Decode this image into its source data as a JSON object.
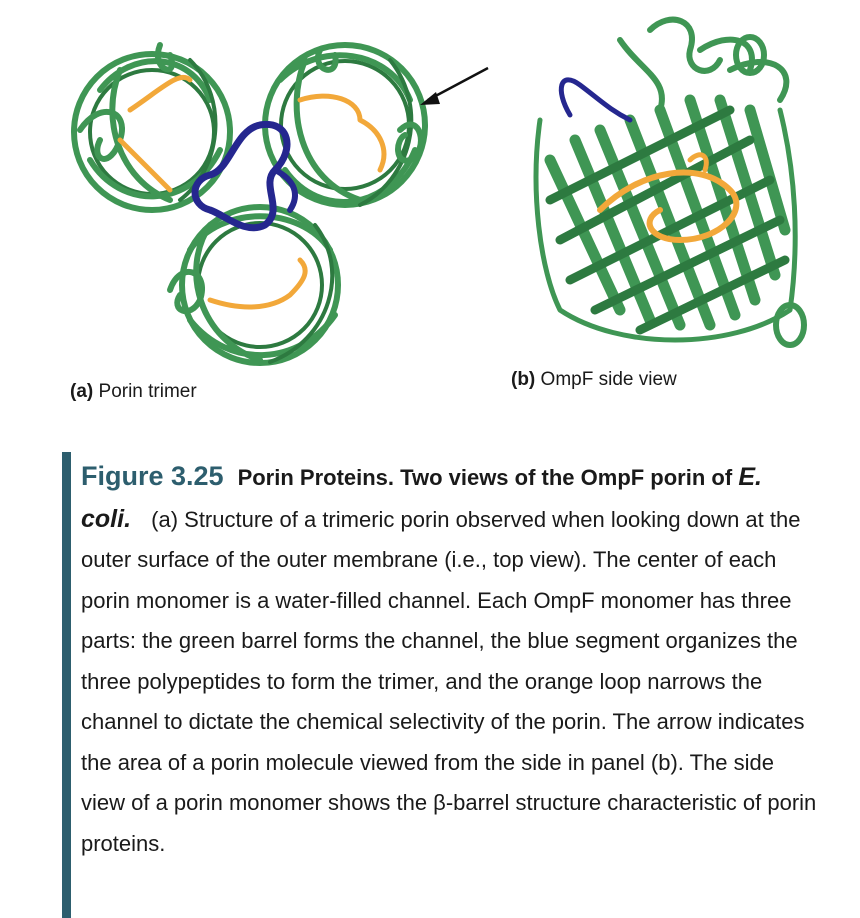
{
  "panels": {
    "a": {
      "tag": "(a)",
      "label": "Porin trimer"
    },
    "b": {
      "tag": "(b)",
      "label": "OmpF side view"
    }
  },
  "colors": {
    "barrel_green": "#3f9654",
    "barrel_dark": "#2d7a40",
    "segment_blue": "#25278f",
    "loop_orange": "#f2a83a",
    "caption_bar": "#2d5e6e"
  },
  "caption": {
    "figure_number": "Figure 3.25",
    "title": "Porin Proteins. Two views of the OmpF porin of",
    "organism": "E. coli.",
    "body": "(a) Structure of a trimeric porin observed when looking down at the outer surface of the outer membrane (i.e., top view). The center of each porin monomer is a water-filled channel. Each OmpF monomer has three parts: the green barrel forms the channel, the blue segment organizes the three polypeptides to form the trimer, and the orange loop narrows the channel to dictate the chemical selectivity of the porin. The arrow indicates the area of a porin molecule viewed from the side in panel (b). The side view of a porin monomer shows the β-barrel structure characteristic of porin proteins."
  }
}
